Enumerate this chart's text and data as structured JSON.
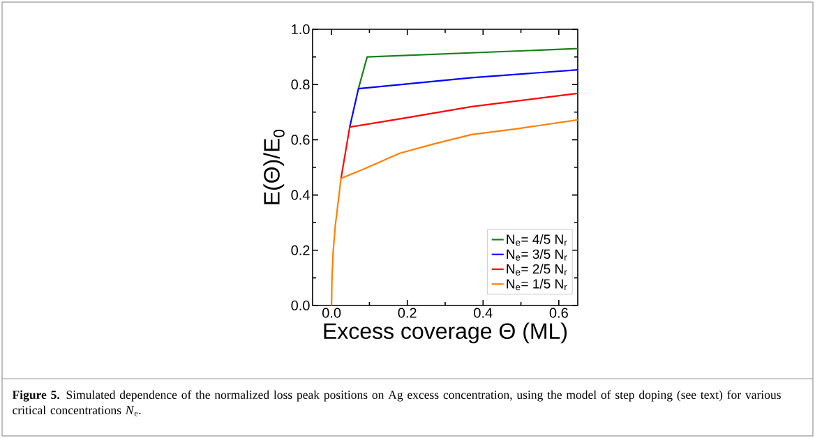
{
  "chart_data": {
    "type": "line",
    "xlabel": "Excess coverage Θ (ML)",
    "ylabel": "E(Θ)/E$_{0}$",
    "xlim": [
      -0.05,
      0.65
    ],
    "ylim": [
      0,
      1.0
    ],
    "xticks": [
      {
        "value": 0,
        "label": "0.0"
      },
      0.2,
      0.4,
      0.6
    ],
    "yticks": [
      {
        "value": 0,
        "label": "0.0"
      },
      0.2,
      0.4,
      0.6,
      0.8,
      {
        "value": 1.0,
        "label": "1.0"
      }
    ],
    "legend": "bottom right",
    "grid": false,
    "line_style": "solid",
    "marker": "none",
    "series": [
      {
        "name": "N$_{e}$= 4/5 N$_{r}$",
        "color": "#1a7f1a",
        "x": [
          0.071,
          0.094,
          0.65
        ],
        "values": [
          0.785,
          0.9,
          0.93
        ]
      },
      {
        "name": "N$_{e}$= 3/5 N$_{r}$",
        "color": "#0000ff",
        "x": [
          0.048,
          0.071,
          0.37,
          0.65
        ],
        "values": [
          0.646,
          0.785,
          0.825,
          0.853
        ]
      },
      {
        "name": "N$_{e}$= 2/5 N$_{r}$",
        "color": "#ff0000",
        "x": [
          0.025,
          0.048,
          0.2,
          0.37,
          0.65
        ],
        "values": [
          0.46,
          0.646,
          0.68,
          0.72,
          0.768
        ]
      },
      {
        "name": "N$_{e}$= 1/5 N$_{r}$",
        "color": "#ff7f00",
        "x": [
          0,
          0.001,
          0.004,
          0.01,
          0.025,
          0.09,
          0.18,
          0.27,
          0.37,
          0.49,
          0.65
        ],
        "values": [
          0,
          0.09,
          0.19,
          0.29,
          0.46,
          0.497,
          0.551,
          0.585,
          0.619,
          0.64,
          0.672
        ]
      }
    ],
    "annotations": [
      "**Figure 5.** Simulated dependence of the normalized loss peak positions on Ag excess concentration, using the model of step doping (see text) for various critical concentrations *N*$_{e}$."
    ]
  }
}
